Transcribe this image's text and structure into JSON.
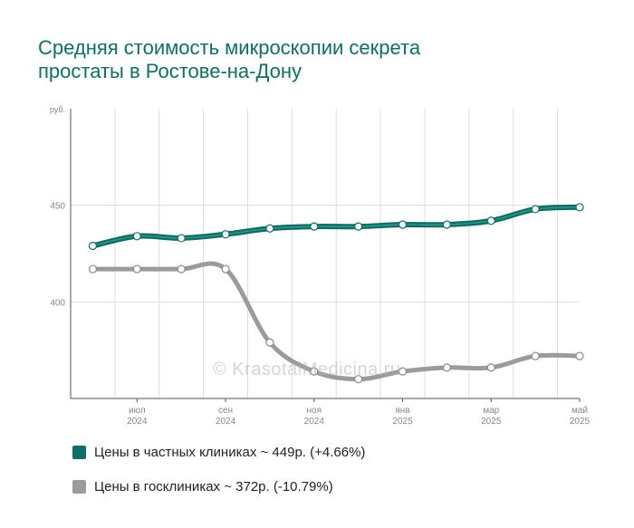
{
  "title_lines": [
    "Средняя стоимость микроскопии секрета",
    "простаты в Ростове-на-Дону"
  ],
  "watermark": "© KrasotaiMedicina.ru",
  "legend": [
    {
      "label": "Цены в частных клиниках ~ 449р. (+4.66%)",
      "color": "#0e6f66"
    },
    {
      "label": "Цены в госклиниках ~ 372р. (-10.79%)",
      "color": "#9b9b9b"
    }
  ],
  "chart_data": {
    "type": "line",
    "ylabel": "руб.",
    "yticks": [
      400,
      450
    ],
    "ylim": [
      350,
      500
    ],
    "x_index_range": [
      -0.5,
      11.0
    ],
    "xticks": [
      {
        "index": 1,
        "month": "июл",
        "year": "2024"
      },
      {
        "index": 3,
        "month": "сен",
        "year": "2024"
      },
      {
        "index": 5,
        "month": "ноя",
        "year": "2024"
      },
      {
        "index": 7,
        "month": "янв",
        "year": "2025"
      },
      {
        "index": 9,
        "month": "мар",
        "year": "2025"
      },
      {
        "index": 11,
        "month": "май",
        "year": "2025"
      }
    ],
    "x": [
      "2024-06",
      "2024-07",
      "2024-08",
      "2024-09",
      "2024-10",
      "2024-11",
      "2024-12",
      "2025-01",
      "2025-02",
      "2025-03",
      "2025-04",
      "2025-05"
    ],
    "series": [
      {
        "name": "Цены в частных клиниках",
        "color": "#0e6f66",
        "values": [
          429,
          434,
          433,
          435,
          438,
          439,
          439,
          440,
          440,
          442,
          448,
          449
        ]
      },
      {
        "name": "Цены в госклиниках",
        "color": "#9b9b9b",
        "values": [
          417,
          417,
          417,
          417,
          379,
          364,
          360,
          364,
          366,
          366,
          372,
          372
        ]
      }
    ]
  }
}
